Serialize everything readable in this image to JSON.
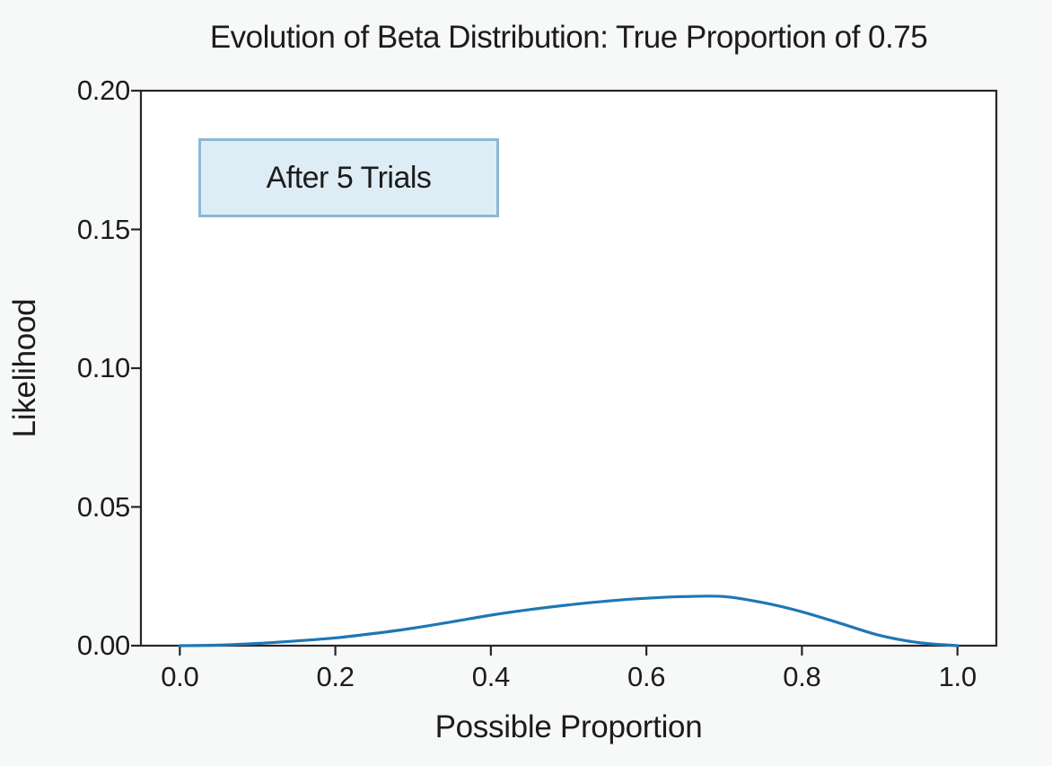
{
  "window": {
    "background": "#f7f8f8"
  },
  "chart_data": {
    "type": "line",
    "title": "Evolution of Beta Distribution: True Proportion of 0.75",
    "xlabel": "Possible Proportion",
    "ylabel": "Likelihood",
    "xlim": [
      -0.05,
      1.05
    ],
    "ylim": [
      0.0,
      0.2
    ],
    "grid": false,
    "legend": "none",
    "axes_background": "#ffffff",
    "spine_color": "#262626",
    "text_color": "#1c1c1c",
    "annotation": {
      "label": "After 5 Trials",
      "fill": "#deedf5",
      "border": "#8cb8d4"
    },
    "xticks": {
      "values": [
        0.0,
        0.2,
        0.4,
        0.6,
        0.8,
        1.0
      ],
      "labels": [
        "0.0",
        "0.2",
        "0.4",
        "0.6",
        "0.8",
        "1.0"
      ]
    },
    "yticks": {
      "values": [
        0.0,
        0.05,
        0.1,
        0.15,
        0.2
      ],
      "labels": [
        "0.00",
        "0.05",
        "0.10",
        "0.15",
        "0.20"
      ]
    },
    "series": [
      {
        "name": "likelihood-after-5-trials",
        "color": "#1f77b4",
        "x": [
          0.0,
          0.05,
          0.1,
          0.15,
          0.2,
          0.25,
          0.3,
          0.35,
          0.4,
          0.45,
          0.5,
          0.55,
          0.6,
          0.65,
          0.7,
          0.75,
          0.8,
          0.85,
          0.9,
          0.95,
          1.0
        ],
        "y": [
          0.0,
          0.0002,
          0.0008,
          0.0017,
          0.0028,
          0.0044,
          0.0063,
          0.0086,
          0.011,
          0.013,
          0.0147,
          0.0161,
          0.0171,
          0.0177,
          0.0177,
          0.0155,
          0.0122,
          0.008,
          0.0037,
          0.0011,
          0.0
        ]
      }
    ]
  }
}
